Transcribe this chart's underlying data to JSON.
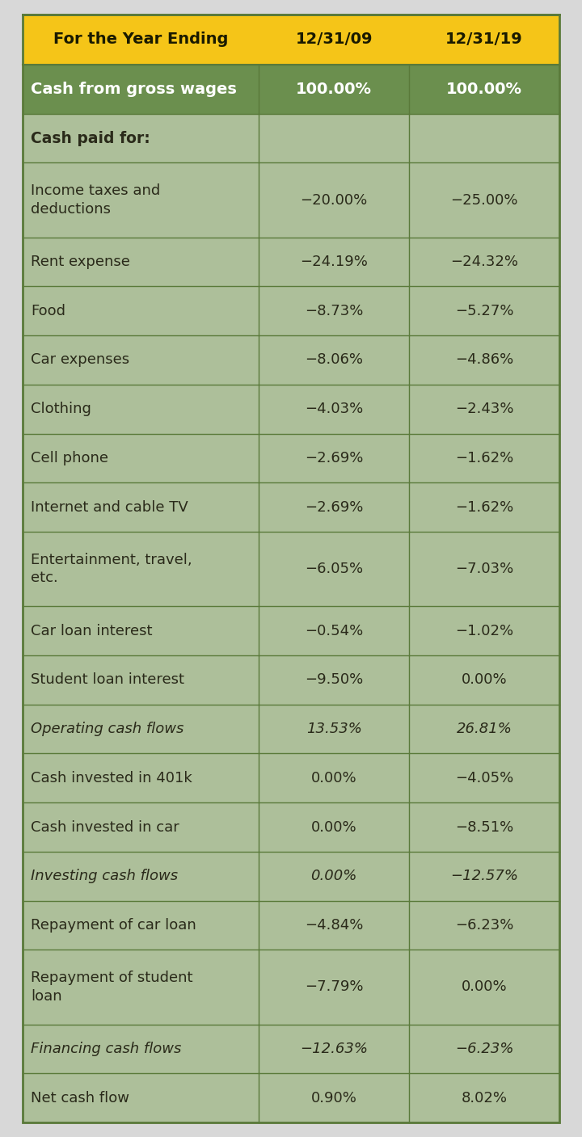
{
  "header_bg": "#F5C518",
  "header_text_color": "#1a1a00",
  "header_label": "For the Year Ending",
  "col1_header": "12/31/09",
  "col2_header": "12/31/19",
  "dark_green": "#6B8F4E",
  "light_green": "#ADBF9A",
  "outer_bg": "#d8d8d8",
  "text_dark": "#2a2a1a",
  "border_color": "#5a7a3a",
  "rows": [
    {
      "label": "Cash from gross wages",
      "v1": "100.00%",
      "v2": "100.00%",
      "style": "bold_green",
      "italic": false
    },
    {
      "label": "Cash paid for:",
      "v1": "",
      "v2": "",
      "style": "bold_light",
      "italic": false
    },
    {
      "label": "Income taxes and\ndeductions",
      "v1": "−20.00%",
      "v2": "−25.00%",
      "style": "normal",
      "italic": false
    },
    {
      "label": "Rent expense",
      "v1": "−24.19%",
      "v2": "−24.32%",
      "style": "normal",
      "italic": false
    },
    {
      "label": "Food",
      "v1": "−8.73%",
      "v2": "−5.27%",
      "style": "normal",
      "italic": false
    },
    {
      "label": "Car expenses",
      "v1": "−8.06%",
      "v2": "−4.86%",
      "style": "normal",
      "italic": false
    },
    {
      "label": "Clothing",
      "v1": "−4.03%",
      "v2": "−2.43%",
      "style": "normal",
      "italic": false
    },
    {
      "label": "Cell phone",
      "v1": "−2.69%",
      "v2": "−1.62%",
      "style": "normal",
      "italic": false
    },
    {
      "label": "Internet and cable TV",
      "v1": "−2.69%",
      "v2": "−1.62%",
      "style": "normal",
      "italic": false
    },
    {
      "label": "Entertainment, travel,\netc.",
      "v1": "−6.05%",
      "v2": "−7.03%",
      "style": "normal",
      "italic": false
    },
    {
      "label": "Car loan interest",
      "v1": "−0.54%",
      "v2": "−1.02%",
      "style": "normal",
      "italic": false
    },
    {
      "label": "Student loan interest",
      "v1": "−9.50%",
      "v2": "0.00%",
      "style": "normal",
      "italic": false
    },
    {
      "label": "Operating cash flows",
      "v1": "13.53%",
      "v2": "26.81%",
      "style": "italic_light",
      "italic": true
    },
    {
      "label": "Cash invested in 401k",
      "v1": "0.00%",
      "v2": "−4.05%",
      "style": "normal",
      "italic": false
    },
    {
      "label": "Cash invested in car",
      "v1": "0.00%",
      "v2": "−8.51%",
      "style": "normal",
      "italic": false
    },
    {
      "label": "Investing cash flows",
      "v1": "0.00%",
      "v2": "−12.57%",
      "style": "italic_light",
      "italic": true
    },
    {
      "label": "Repayment of car loan",
      "v1": "−4.84%",
      "v2": "−6.23%",
      "style": "normal",
      "italic": false
    },
    {
      "label": "Repayment of student\nloan",
      "v1": "−7.79%",
      "v2": "0.00%",
      "style": "normal",
      "italic": false
    },
    {
      "label": "Financing cash flows",
      "v1": "−12.63%",
      "v2": "−6.23%",
      "style": "italic_light",
      "italic": true
    },
    {
      "label": "Net cash flow",
      "v1": "0.90%",
      "v2": "8.02%",
      "style": "normal",
      "italic": false
    }
  ]
}
